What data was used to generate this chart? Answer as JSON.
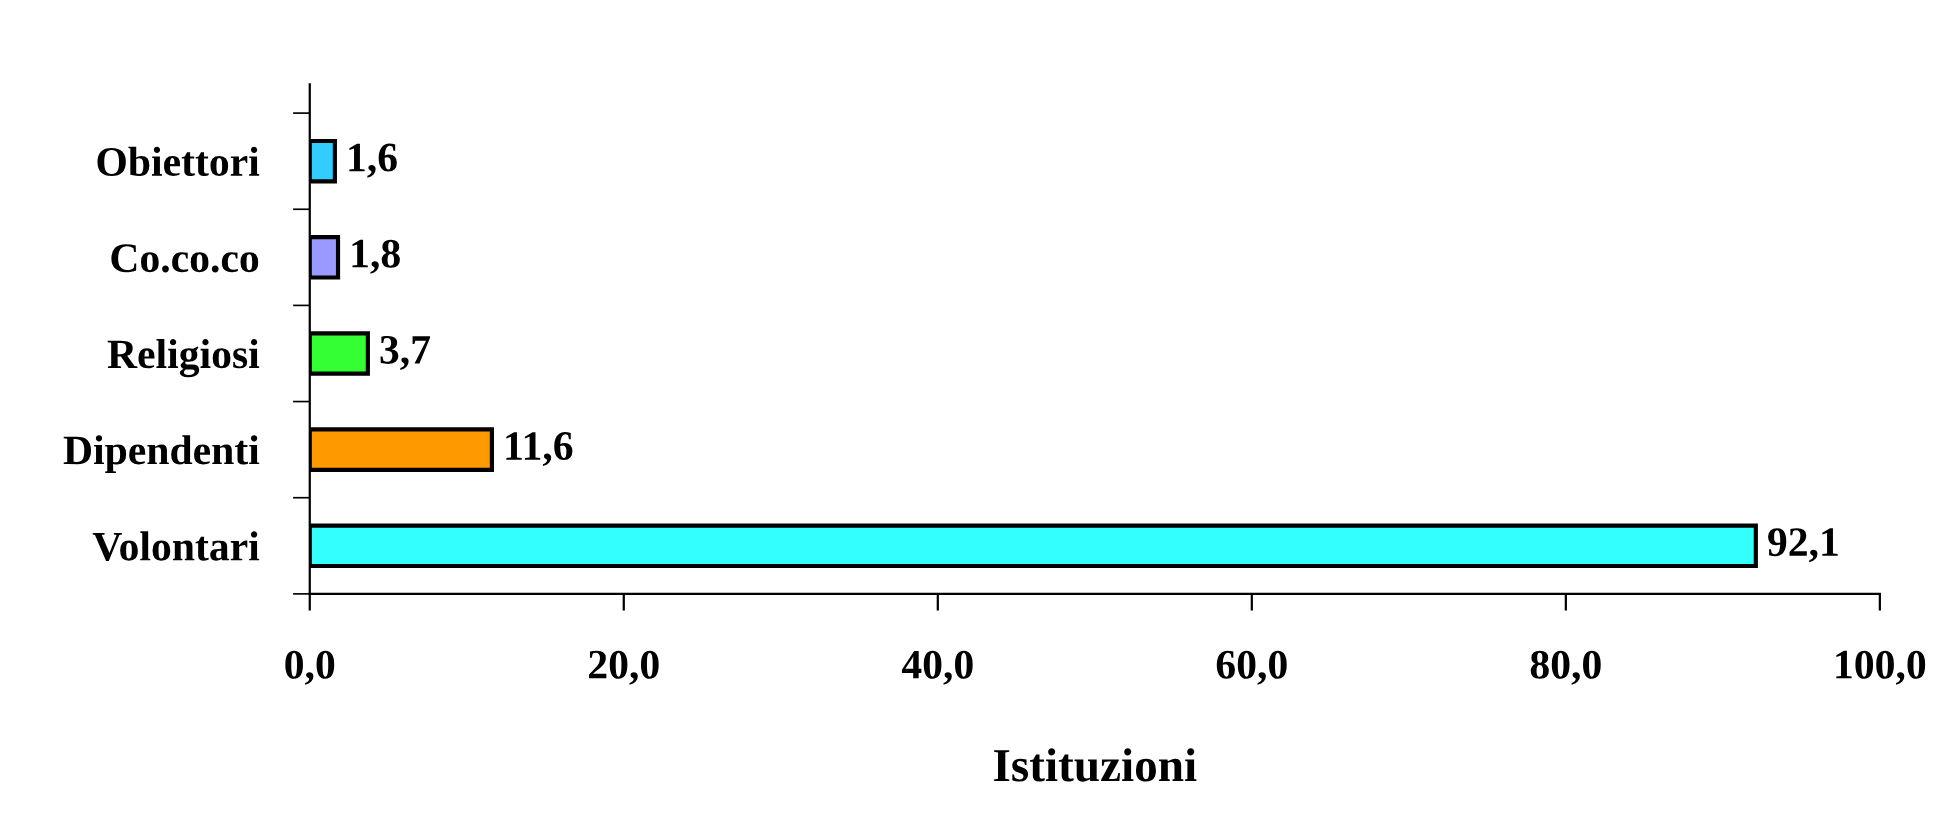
{
  "chart_data": {
    "type": "bar",
    "orientation": "horizontal",
    "xlabel": "Istituzioni",
    "categories": [
      "Obiettori",
      "Co.co.co",
      "Religiosi",
      "Dipendenti",
      "Volontari"
    ],
    "values": [
      1.6,
      1.8,
      3.7,
      11.6,
      92.1
    ],
    "value_labels": [
      "1,6",
      "1,8",
      "3,7",
      "11,6",
      "92,1"
    ],
    "colors": [
      "#33ccff",
      "#9999ff",
      "#33ff33",
      "#ff9900",
      "#33ffff"
    ],
    "xlim": [
      0,
      100
    ],
    "xticks": [
      {
        "value": 0,
        "label": "0,0"
      },
      {
        "value": 20,
        "label": "20,0"
      },
      {
        "value": 40,
        "label": "40,0"
      },
      {
        "value": 60,
        "label": "60,0"
      },
      {
        "value": 80,
        "label": "80,0"
      },
      {
        "value": 100,
        "label": "100,0"
      }
    ],
    "grid": false,
    "legend": false
  }
}
